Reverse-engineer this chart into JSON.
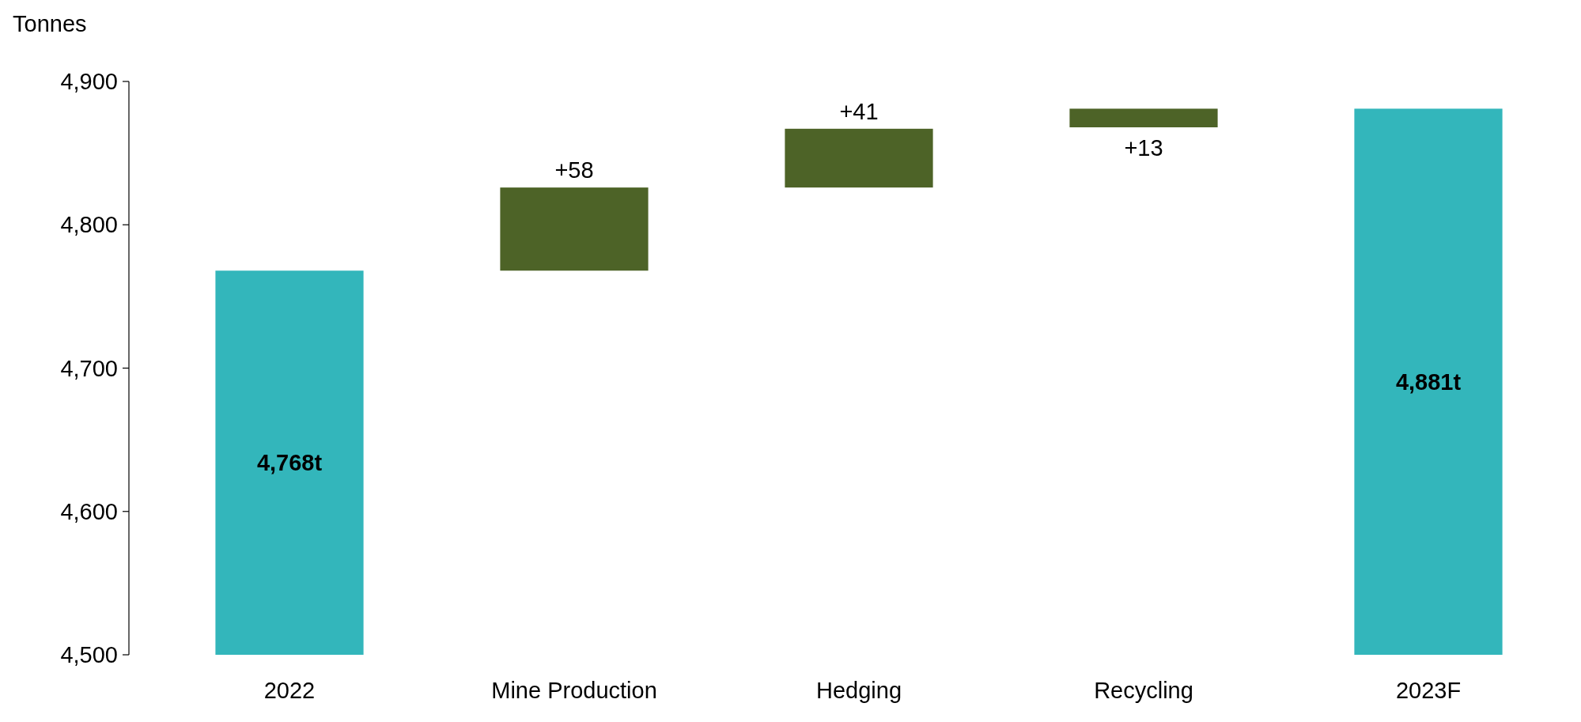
{
  "chart_data": {
    "type": "bar",
    "ylabel": "Tonnes",
    "categories": [
      "2022",
      "Mine Production",
      "Hedging",
      "Recycling",
      "2023F"
    ],
    "values": [
      4768,
      58,
      41,
      13,
      4881
    ],
    "base": [
      null,
      4768,
      4826,
      4868,
      null
    ],
    "colors": [
      "#33b6bb",
      "#4d6327",
      "#4d6327",
      "#4d6327",
      "#33b6bb"
    ],
    "value_labels": [
      "4,768t",
      "+58",
      "+41",
      "+13",
      "4,881t"
    ],
    "ylim": [
      4500,
      4900
    ],
    "yticks": [
      {
        "value": 4500,
        "label": "4,500"
      },
      {
        "value": 4600,
        "label": "4,600"
      },
      {
        "value": 4700,
        "label": "4,700"
      },
      {
        "value": 4800,
        "label": "4,800"
      },
      {
        "value": 4900,
        "label": "4,900"
      }
    ],
    "grid": false
  }
}
